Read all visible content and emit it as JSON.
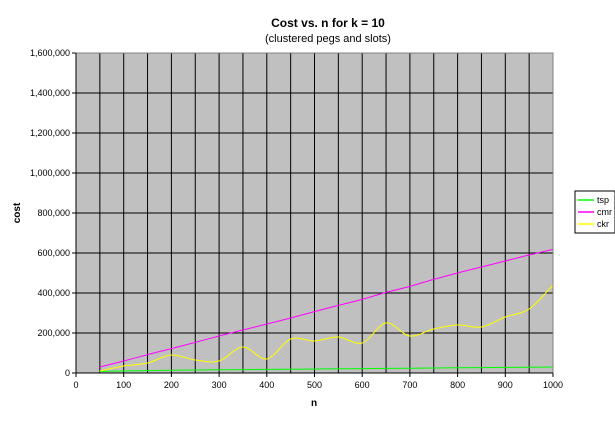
{
  "chart_data": {
    "type": "line",
    "title": "Cost vs. n for k = 10",
    "subtitle": "(clustered pegs and slots)",
    "xlabel": "n",
    "ylabel": "cost",
    "xlim": [
      0,
      1000
    ],
    "ylim": [
      0,
      1600000
    ],
    "xticks": [
      "0",
      "100",
      "200",
      "300",
      "400",
      "500",
      "600",
      "700",
      "800",
      "900",
      "1000"
    ],
    "yticks": [
      "0",
      "200,000",
      "400,000",
      "600,000",
      "800,000",
      "1,000,000",
      "1,200,000",
      "1,400,000",
      "1,600,000"
    ],
    "grid": true,
    "legend_position": "right",
    "plot_background": "#c0c0c0",
    "x": [
      50,
      100,
      150,
      200,
      250,
      300,
      350,
      400,
      450,
      500,
      550,
      600,
      650,
      700,
      750,
      800,
      850,
      900,
      950,
      1000
    ],
    "series": [
      {
        "name": "tsp",
        "color": "#00ff00",
        "values": [
          8000,
          10000,
          12000,
          14000,
          15000,
          16000,
          17000,
          18000,
          19000,
          20000,
          21000,
          22000,
          23000,
          24000,
          25000,
          26000,
          27000,
          28000,
          29000,
          30000
        ]
      },
      {
        "name": "cmr",
        "color": "#ff00ff",
        "values": [
          30000,
          60000,
          92000,
          122000,
          153000,
          185000,
          215000,
          245000,
          275000,
          307000,
          338000,
          368000,
          403000,
          433000,
          468000,
          500000,
          530000,
          560000,
          590000,
          618000
        ]
      },
      {
        "name": "ckr",
        "color": "#ffff00",
        "values": [
          10000,
          35000,
          50000,
          90000,
          65000,
          60000,
          130000,
          70000,
          170000,
          160000,
          180000,
          150000,
          250000,
          185000,
          220000,
          240000,
          230000,
          280000,
          320000,
          440000
        ]
      }
    ]
  }
}
